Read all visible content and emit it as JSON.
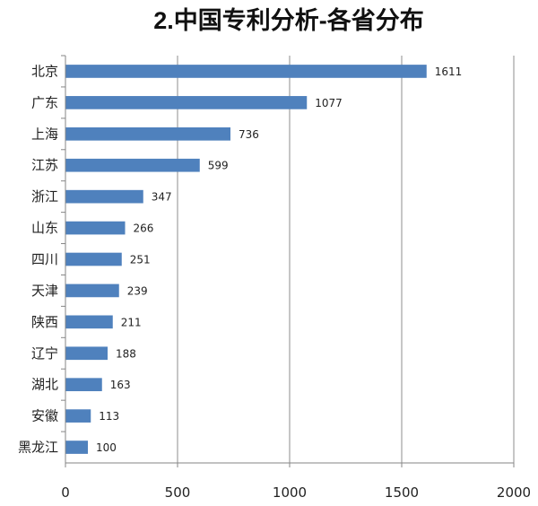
{
  "chart_data": {
    "type": "bar",
    "orientation": "horizontal",
    "title": "2.中国专利分析-各省分布",
    "categories": [
      "北京",
      "广东",
      "上海",
      "江苏",
      "浙江",
      "山东",
      "四川",
      "天津",
      "陕西",
      "辽宁",
      "湖北",
      "安徽",
      "黑龙江"
    ],
    "values": [
      1611,
      1077,
      736,
      599,
      347,
      266,
      251,
      239,
      211,
      188,
      163,
      113,
      100
    ],
    "xlim": [
      0,
      2000
    ],
    "xticks": [
      0,
      500,
      1000,
      1500,
      2000
    ],
    "xlabel": "",
    "ylabel": "",
    "grid": "vertical",
    "legend": "none",
    "bar_color": "#4f81bd",
    "data_labels": true
  }
}
